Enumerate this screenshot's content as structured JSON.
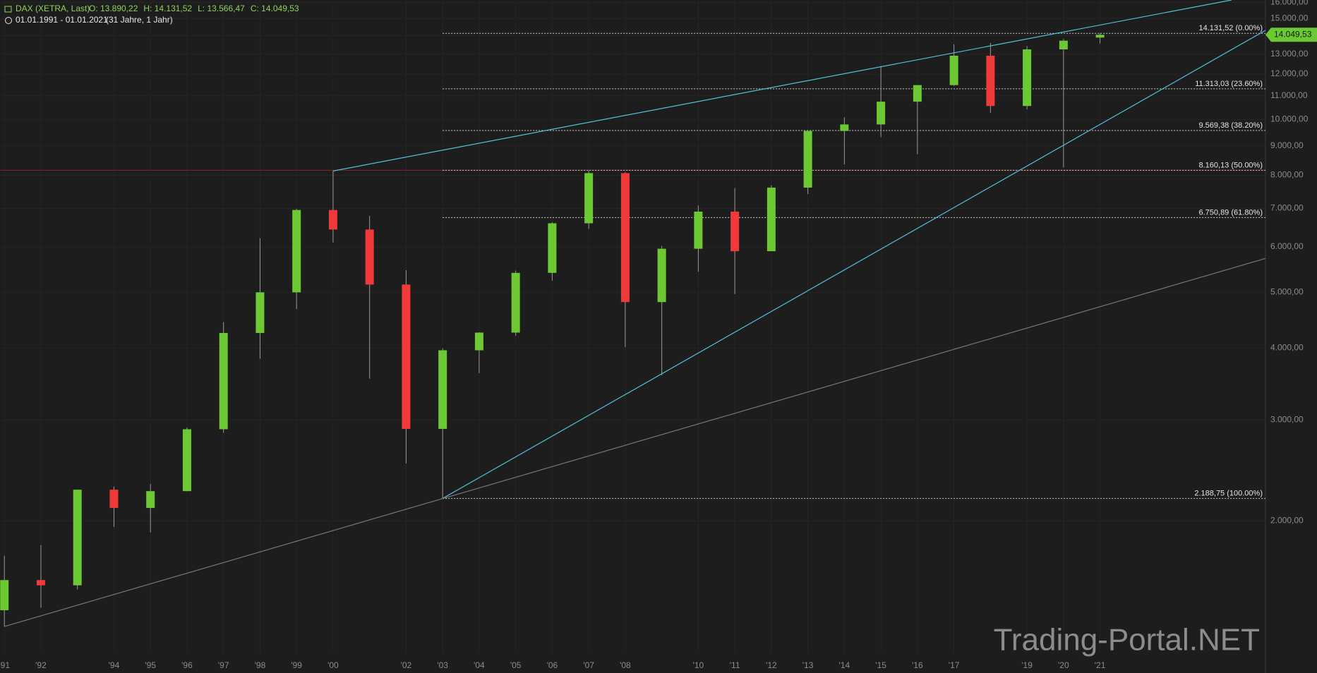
{
  "header": {
    "symbol": "DAX (XETRA, Last)",
    "ohlc": [
      "O: 13.890,22",
      "H: 14.131,52",
      "L: 13.566,47",
      "C: 14.049,53"
    ],
    "range": "01.01.1991 - 01.01.2021",
    "period": "(31 Jahre, 1 Jahr)"
  },
  "chart_data": {
    "type": "candlestick",
    "log_scale": true,
    "grid": true,
    "up_color": "#6cc833",
    "down_color": "#f03a3a",
    "x": [
      1991,
      1992,
      1993,
      1994,
      1995,
      1996,
      1997,
      1998,
      1999,
      2000,
      2001,
      2002,
      2003,
      2004,
      2005,
      2006,
      2007,
      2008,
      2009,
      2010,
      2011,
      2012,
      2013,
      2014,
      2015,
      2016,
      2017,
      2018,
      2019,
      2020,
      2021
    ],
    "open": [
      1398,
      1578,
      1545,
      2267,
      2107,
      2254,
      2889,
      4250,
      5002,
      6958,
      6434,
      5160,
      2893,
      3965,
      4256,
      5408,
      6597,
      8067,
      4810,
      5957,
      6914,
      5898,
      7612,
      9552,
      9806,
      10743,
      11481,
      12918,
      10559,
      13249,
      13890.22
    ],
    "high": [
      1740,
      1815,
      2270,
      2296,
      2320,
      2909,
      4438,
      6217,
      6992,
      8136,
      6795,
      5467,
      3996,
      4261,
      5458,
      6630,
      8152,
      8100,
      6027,
      7087,
      7600,
      7684,
      9589,
      10087,
      12391,
      11482,
      13525,
      13596,
      13425,
      13813,
      14131.52
    ],
    "low": [
      1310,
      1413,
      1520,
      1953,
      1910,
      2254,
      2848,
      3833,
      4678,
      6111,
      3539,
      2519,
      2189,
      3618,
      4201,
      5243,
      6448,
      4014,
      3588,
      5434,
      4966,
      5914,
      7419,
      8355,
      9325,
      8699,
      11450,
      10279,
      10415,
      8256,
      13566.47
    ],
    "close": [
      1578,
      1545,
      2267,
      2107,
      2254,
      2889,
      4250,
      5002,
      6958,
      6434,
      5160,
      2893,
      3965,
      4256,
      5408,
      6597,
      8067,
      4810,
      5957,
      6914,
      5898,
      7612,
      9552,
      9806,
      10743,
      11481,
      12918,
      10559,
      13249,
      13719,
      14049.53
    ],
    "last_label": "14.049,53",
    "xlim": [
      1990.88,
      2025.53
    ],
    "ylim": [
      1180,
      16150
    ],
    "xticks": [
      {
        "value": 1991,
        "label": "'91"
      },
      {
        "value": 1992,
        "label": "'92"
      },
      {
        "value": 1994,
        "label": "'94"
      },
      {
        "value": 1995,
        "label": "'95"
      },
      {
        "value": 1996,
        "label": "'96"
      },
      {
        "value": 1997,
        "label": "'97"
      },
      {
        "value": 1998,
        "label": "'98"
      },
      {
        "value": 1999,
        "label": "'99"
      },
      {
        "value": 2000,
        "label": "'00"
      },
      {
        "value": 2002,
        "label": "'02"
      },
      {
        "value": 2003,
        "label": "'03"
      },
      {
        "value": 2004,
        "label": "'04"
      },
      {
        "value": 2005,
        "label": "'05"
      },
      {
        "value": 2006,
        "label": "'06"
      },
      {
        "value": 2007,
        "label": "'07"
      },
      {
        "value": 2008,
        "label": "'08"
      },
      {
        "value": 2010,
        "label": "'10"
      },
      {
        "value": 2011,
        "label": "'11"
      },
      {
        "value": 2012,
        "label": "'12"
      },
      {
        "value": 2013,
        "label": "'13"
      },
      {
        "value": 2014,
        "label": "'14"
      },
      {
        "value": 2015,
        "label": "'15"
      },
      {
        "value": 2016,
        "label": "'16"
      },
      {
        "value": 2017,
        "label": "'17"
      },
      {
        "value": 2019,
        "label": "'19"
      },
      {
        "value": 2020,
        "label": "'20"
      },
      {
        "value": 2021,
        "label": "'21"
      }
    ],
    "yticks": [
      {
        "value": 2000,
        "label": "2.000,00"
      },
      {
        "value": 3000,
        "label": "3.000,00"
      },
      {
        "value": 4000,
        "label": "4.000,00"
      },
      {
        "value": 5000,
        "label": "5.000,00"
      },
      {
        "value": 6000,
        "label": "6.000,00"
      },
      {
        "value": 7000,
        "label": "7.000,00"
      },
      {
        "value": 8000,
        "label": "8.000,00"
      },
      {
        "value": 9000,
        "label": "9.000,00"
      },
      {
        "value": 10000,
        "label": "10.000,00"
      },
      {
        "value": 11000,
        "label": "11.000,00"
      },
      {
        "value": 12000,
        "label": "12.000,00"
      },
      {
        "value": 13000,
        "label": "13.000,00"
      },
      {
        "value": 14000,
        "label": "14.000,00"
      },
      {
        "value": 15000,
        "label": "15.000,00"
      },
      {
        "value": 16000,
        "label": "16.000,00"
      }
    ],
    "fibonacci": {
      "from_x": 2003,
      "levels": [
        {
          "value": 14131.52,
          "label": "14.131,52 (0.00%)"
        },
        {
          "value": 11313.03,
          "label": "11.313,03 (23.60%)"
        },
        {
          "value": 9569.38,
          "label": "9.569,38 (38.20%)"
        },
        {
          "value": 8160.13,
          "label": "8.160,13 (50.00%)"
        },
        {
          "value": 6750.89,
          "label": "6.750,89 (61.80%)"
        },
        {
          "value": 2188.75,
          "label": "2.188,75 (100.00%)"
        }
      ]
    },
    "hlines": [
      {
        "value": 8160.13,
        "color": "#7a2a2e"
      }
    ],
    "trendlines": [
      {
        "x": [
          2000,
          2024.6
        ],
        "y": [
          8136,
          16150
        ],
        "color": "#4cc3dc"
      },
      {
        "x": [
          2003,
          2025.53
        ],
        "y": [
          2189,
          14300
        ],
        "color": "#4cc3dc"
      },
      {
        "x": [
          1991,
          2025.53
        ],
        "y": [
          1310,
          5730
        ],
        "color": "#777777"
      }
    ],
    "watermark": "Trading-Portal.NET"
  }
}
